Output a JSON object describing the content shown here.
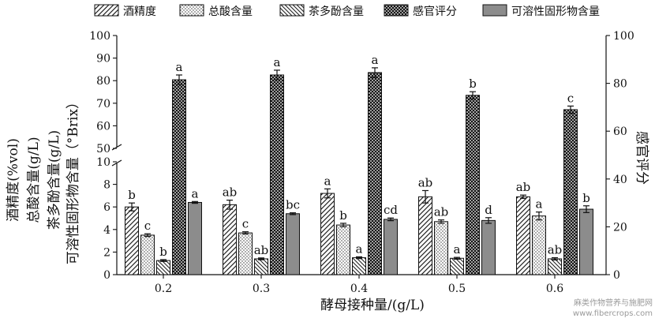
{
  "chart_data": {
    "type": "bar",
    "xlabel": "酵母接种量/(g/L)",
    "ylabel_left_lines": [
      "酒精度(%vol)",
      "总酸含量(g/L)",
      "茶多酚含量(g/L)",
      "可溶性固形物含量（°Brix）"
    ],
    "ylabel_right": "感官评分",
    "categories": [
      "0.2",
      "0.3",
      "0.4",
      "0.5",
      "0.6"
    ],
    "y_left_lower_range": [
      0,
      10
    ],
    "y_left_upper_range": [
      50,
      100
    ],
    "y_right_range": [
      0,
      100
    ],
    "y_left_ticks": [
      "0",
      "2",
      "4",
      "6",
      "8",
      "10",
      "50",
      "60",
      "70",
      "80",
      "90",
      "100"
    ],
    "y_right_ticks": [
      "0",
      "20",
      "40",
      "60",
      "80",
      "100"
    ],
    "legend_position": "top",
    "series": [
      {
        "name": "酒精度",
        "axis": "left",
        "pattern": "diagonal",
        "values": [
          6.0,
          6.2,
          7.2,
          6.9,
          6.9
        ],
        "errors": [
          0.35,
          0.4,
          0.4,
          0.55,
          0.15
        ],
        "letters": [
          "b",
          "ab",
          "a",
          "ab",
          "ab"
        ]
      },
      {
        "name": "总酸含量",
        "axis": "left",
        "pattern": "dots",
        "values": [
          3.5,
          3.7,
          4.4,
          4.7,
          5.2
        ],
        "errors": [
          0.12,
          0.1,
          0.15,
          0.15,
          0.35
        ],
        "letters": [
          "c",
          "c",
          "b",
          "ab",
          "a"
        ]
      },
      {
        "name": "茶多酚含量",
        "axis": "left",
        "pattern": "backslash",
        "values": [
          1.25,
          1.4,
          1.5,
          1.45,
          1.4
        ],
        "errors": [
          0.08,
          0.08,
          0.08,
          0.08,
          0.1
        ],
        "letters": [
          "b",
          "ab",
          "a",
          "a",
          "ab"
        ]
      },
      {
        "name": "感官评分",
        "axis": "right",
        "pattern": "crosshatch",
        "values": [
          81.5,
          83.5,
          84.5,
          75,
          69
        ],
        "errors": [
          2.0,
          2.0,
          2.0,
          1.5,
          1.5
        ],
        "letters": [
          "a",
          "a",
          "a",
          "b",
          "c"
        ]
      },
      {
        "name": "可溶性固形物含量",
        "axis": "left",
        "pattern": "solid",
        "values": [
          6.4,
          5.4,
          4.9,
          4.8,
          5.8
        ],
        "errors": [
          0.08,
          0.08,
          0.12,
          0.25,
          0.3
        ],
        "letters": [
          "a",
          "bc",
          "cd",
          "d",
          "b"
        ]
      }
    ]
  },
  "watermark": {
    "line1": "麻类作物营养与施肥网",
    "line2": "www.fibercrops.com"
  }
}
